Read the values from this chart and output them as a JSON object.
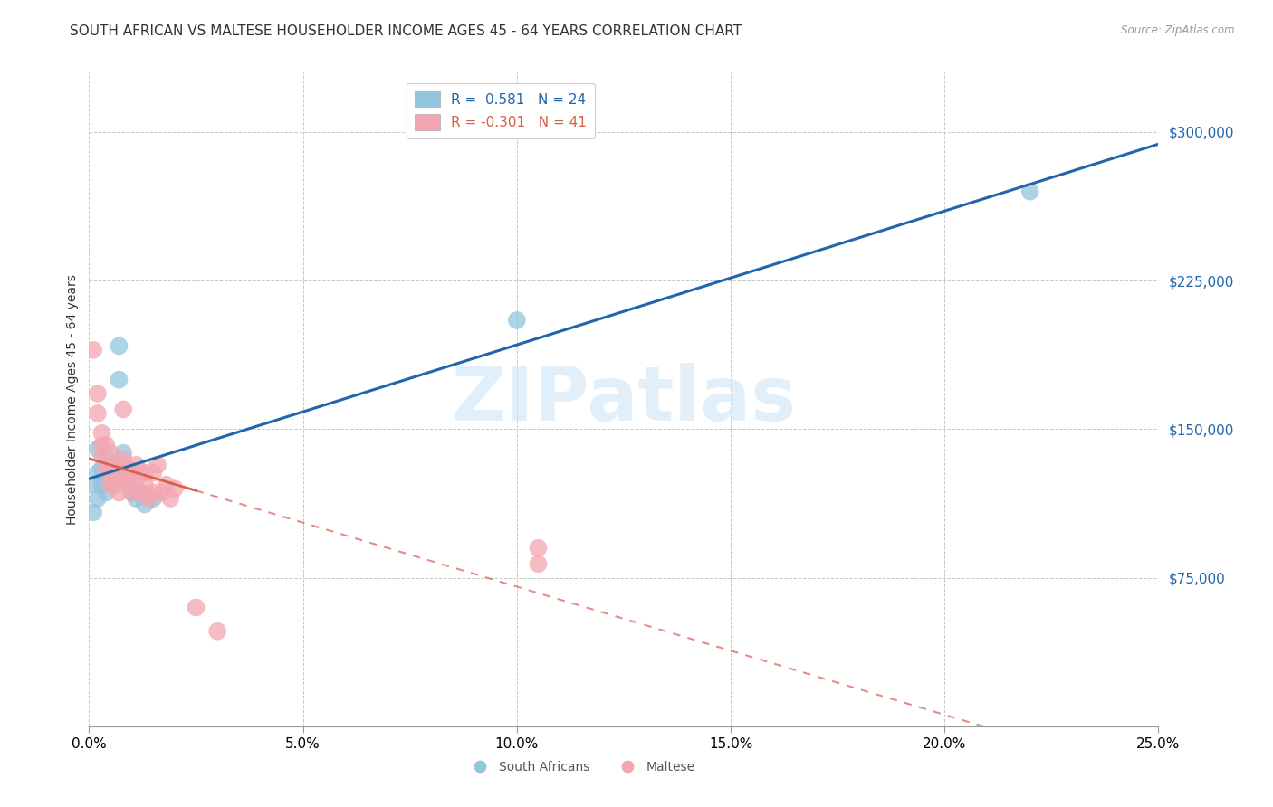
{
  "title": "SOUTH AFRICAN VS MALTESE HOUSEHOLDER INCOME AGES 45 - 64 YEARS CORRELATION CHART",
  "source": "Source: ZipAtlas.com",
  "xlabel_ticks": [
    "0.0%",
    "5.0%",
    "10.0%",
    "15.0%",
    "20.0%",
    "25.0%"
  ],
  "xlabel_vals": [
    0.0,
    0.05,
    0.1,
    0.15,
    0.2,
    0.25
  ],
  "ylabel_ticks": [
    "$75,000",
    "$150,000",
    "$225,000",
    "$300,000"
  ],
  "ylabel_vals": [
    75000,
    150000,
    225000,
    300000
  ],
  "ylabel_label": "Householder Income Ages 45 - 64 years",
  "xlim": [
    0.0,
    0.25
  ],
  "ylim": [
    0,
    330000
  ],
  "R_sa": 0.581,
  "N_sa": 24,
  "R_mt": -0.301,
  "N_mt": 41,
  "sa_color": "#92c5de",
  "mt_color": "#f4a6b0",
  "sa_line_color": "#2166ac",
  "mt_line_color": "#d6604d",
  "watermark_text": "ZIPatlas",
  "sa_points": [
    [
      0.001,
      108000
    ],
    [
      0.001,
      122000
    ],
    [
      0.002,
      115000
    ],
    [
      0.002,
      128000
    ],
    [
      0.002,
      140000
    ],
    [
      0.003,
      130000
    ],
    [
      0.003,
      122000
    ],
    [
      0.004,
      135000
    ],
    [
      0.004,
      118000
    ],
    [
      0.005,
      125000
    ],
    [
      0.005,
      132000
    ],
    [
      0.006,
      128000
    ],
    [
      0.007,
      175000
    ],
    [
      0.007,
      192000
    ],
    [
      0.008,
      138000
    ],
    [
      0.009,
      122000
    ],
    [
      0.01,
      118000
    ],
    [
      0.01,
      128000
    ],
    [
      0.011,
      115000
    ],
    [
      0.012,
      118000
    ],
    [
      0.013,
      112000
    ],
    [
      0.015,
      115000
    ],
    [
      0.1,
      205000
    ],
    [
      0.22,
      270000
    ]
  ],
  "mt_points": [
    [
      0.001,
      190000
    ],
    [
      0.002,
      168000
    ],
    [
      0.002,
      158000
    ],
    [
      0.003,
      148000
    ],
    [
      0.003,
      142000
    ],
    [
      0.003,
      136000
    ],
    [
      0.004,
      142000
    ],
    [
      0.004,
      130000
    ],
    [
      0.005,
      138000
    ],
    [
      0.005,
      128000
    ],
    [
      0.005,
      122000
    ],
    [
      0.006,
      132000
    ],
    [
      0.006,
      122000
    ],
    [
      0.007,
      130000
    ],
    [
      0.007,
      125000
    ],
    [
      0.007,
      118000
    ],
    [
      0.008,
      135000
    ],
    [
      0.008,
      128000
    ],
    [
      0.008,
      160000
    ],
    [
      0.009,
      122000
    ],
    [
      0.009,
      130000
    ],
    [
      0.01,
      128000
    ],
    [
      0.01,
      118000
    ],
    [
      0.011,
      125000
    ],
    [
      0.011,
      132000
    ],
    [
      0.012,
      118000
    ],
    [
      0.012,
      128000
    ],
    [
      0.013,
      122000
    ],
    [
      0.013,
      128000
    ],
    [
      0.014,
      115000
    ],
    [
      0.015,
      128000
    ],
    [
      0.015,
      118000
    ],
    [
      0.016,
      132000
    ],
    [
      0.017,
      118000
    ],
    [
      0.018,
      122000
    ],
    [
      0.019,
      115000
    ],
    [
      0.02,
      120000
    ],
    [
      0.025,
      60000
    ],
    [
      0.03,
      48000
    ],
    [
      0.105,
      90000
    ],
    [
      0.105,
      82000
    ]
  ],
  "background_color": "#ffffff",
  "grid_color": "#c8c8c8",
  "title_fontsize": 11,
  "axis_label_fontsize": 10,
  "tick_fontsize": 10,
  "legend_fontsize": 11
}
